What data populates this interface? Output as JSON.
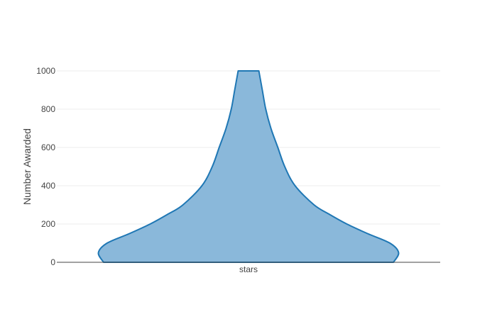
{
  "chart_data": {
    "type": "violin",
    "title": "",
    "xlabel": "",
    "ylabel": "Number Awarded",
    "categories": [
      "stars"
    ],
    "ylim": [
      0,
      1000
    ],
    "yticks": [
      0,
      200,
      400,
      600,
      800,
      1000
    ],
    "grid": true,
    "series": [
      {
        "category": "stars",
        "density_profile": [
          {
            "y": 0,
            "halfwidth": 0.84
          },
          {
            "y": 50,
            "halfwidth": 0.87
          },
          {
            "y": 100,
            "halfwidth": 0.82
          },
          {
            "y": 150,
            "halfwidth": 0.69
          },
          {
            "y": 200,
            "halfwidth": 0.57
          },
          {
            "y": 250,
            "halfwidth": 0.47
          },
          {
            "y": 300,
            "halfwidth": 0.38
          },
          {
            "y": 400,
            "halfwidth": 0.27
          },
          {
            "y": 500,
            "halfwidth": 0.21
          },
          {
            "y": 600,
            "halfwidth": 0.17
          },
          {
            "y": 700,
            "halfwidth": 0.13
          },
          {
            "y": 800,
            "halfwidth": 0.1
          },
          {
            "y": 900,
            "halfwidth": 0.08
          },
          {
            "y": 1000,
            "halfwidth": 0.06
          }
        ]
      }
    ],
    "colors": {
      "fill": "#8ab8da",
      "stroke": "#1f77b4",
      "grid": "#eeeeee",
      "axis": "#444444",
      "text": "#444444"
    }
  }
}
